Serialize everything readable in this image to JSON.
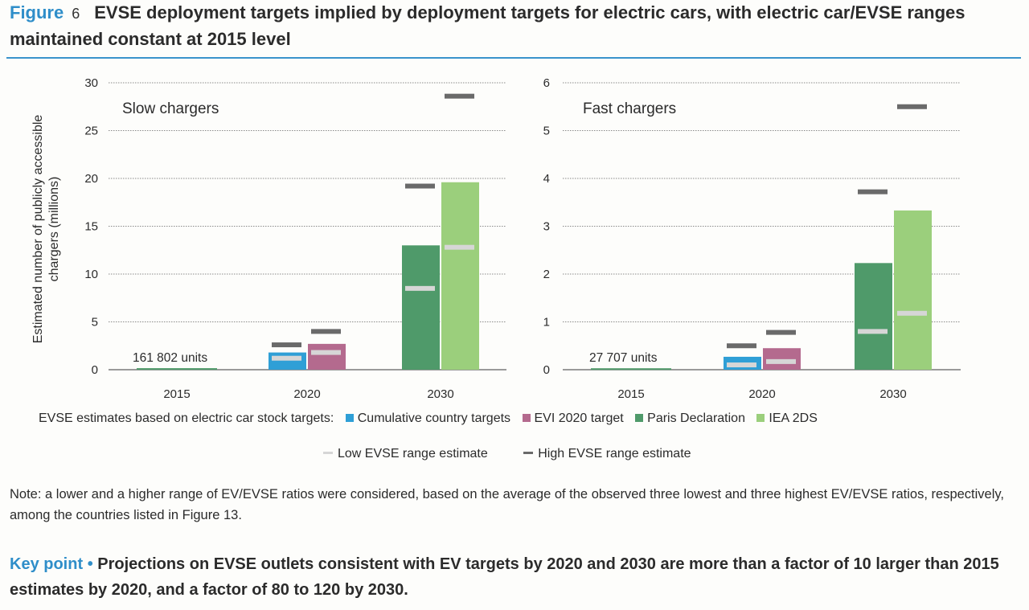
{
  "figure": {
    "label": "Figure",
    "number": "6",
    "title": "EVSE deployment targets implied by deployment targets for electric cars, with electric car/EVSE ranges maintained constant at 2015 level"
  },
  "chart_data": [
    {
      "type": "bar",
      "title": "Slow chargers",
      "ylabel": "Estimated number of publicly accessible chargers (millions)",
      "ylim": [
        0,
        30
      ],
      "yticks": [
        0,
        5,
        10,
        15,
        20,
        25,
        30
      ],
      "categories": [
        "2015",
        "2020",
        "2030"
      ],
      "series": [
        {
          "name": "Cumulative country targets",
          "color": "#2f9fd6",
          "values": [
            null,
            1.8,
            null
          ]
        },
        {
          "name": "EVI 2020 target",
          "color": "#b46a8e",
          "values": [
            null,
            2.7,
            null
          ]
        },
        {
          "name": "Paris Declaration",
          "color": "#4f9a6a",
          "values": [
            null,
            null,
            13.0
          ]
        },
        {
          "name": "IEA 2DS",
          "color": "#9bcf7c",
          "values": [
            null,
            null,
            19.6
          ]
        }
      ],
      "baseline_2015": 0.16,
      "annotation": "161 802 units",
      "range_estimates": {
        "low": {
          "Cumulative country targets": 1.2,
          "EVI 2020 target": 1.8,
          "Paris Declaration": 8.5,
          "IEA 2DS": 12.8
        },
        "high": {
          "Cumulative country targets": 2.6,
          "EVI 2020 target": 4.0,
          "Paris Declaration": 19.2,
          "IEA 2DS": 28.6
        }
      }
    },
    {
      "type": "bar",
      "title": "Fast chargers",
      "ylim": [
        0,
        6
      ],
      "yticks": [
        0,
        1,
        2,
        3,
        4,
        5,
        6
      ],
      "categories": [
        "2015",
        "2020",
        "2030"
      ],
      "series": [
        {
          "name": "Cumulative country targets",
          "color": "#2f9fd6",
          "values": [
            null,
            0.27,
            null
          ]
        },
        {
          "name": "EVI 2020 target",
          "color": "#b46a8e",
          "values": [
            null,
            0.45,
            null
          ]
        },
        {
          "name": "Paris Declaration",
          "color": "#4f9a6a",
          "values": [
            null,
            null,
            2.23
          ]
        },
        {
          "name": "IEA 2DS",
          "color": "#9bcf7c",
          "values": [
            null,
            null,
            3.33
          ]
        }
      ],
      "baseline_2015": 0.03,
      "annotation": "27 707 units",
      "range_estimates": {
        "low": {
          "Cumulative country targets": 0.1,
          "EVI 2020 target": 0.17,
          "Paris Declaration": 0.8,
          "IEA 2DS": 1.18
        },
        "high": {
          "Cumulative country targets": 0.5,
          "EVI 2020 target": 0.78,
          "Paris Declaration": 3.72,
          "IEA 2DS": 5.5
        }
      }
    }
  ],
  "legend": {
    "intro": "EVSE estimates based on electric car stock targets:",
    "items": [
      {
        "label": "Cumulative country targets",
        "color": "#2f9fd6"
      },
      {
        "label": "EVI 2020 target",
        "color": "#b46a8e"
      },
      {
        "label": "Paris Declaration",
        "color": "#4f9a6a"
      },
      {
        "label": "IEA 2DS",
        "color": "#9bcf7c"
      }
    ],
    "low_label": "Low EVSE range estimate",
    "low_color": "#d6d6d6",
    "high_label": "High EVSE range estimate",
    "high_color": "#6a6a6a"
  },
  "note": "Note: a lower and a higher range of EV/EVSE ratios were considered, based on the average of the observed three lowest and three highest EV/EVSE ratios, respectively, among the countries listed in Figure 13.",
  "key_point": {
    "label": "Key point",
    "bullet": "•",
    "text": "Projections on EVSE outlets consistent with EV targets by 2020 and 2030 are more than a factor of 10 larger than 2015 estimates by 2020, and a factor of 80 to 120 by 2030."
  }
}
